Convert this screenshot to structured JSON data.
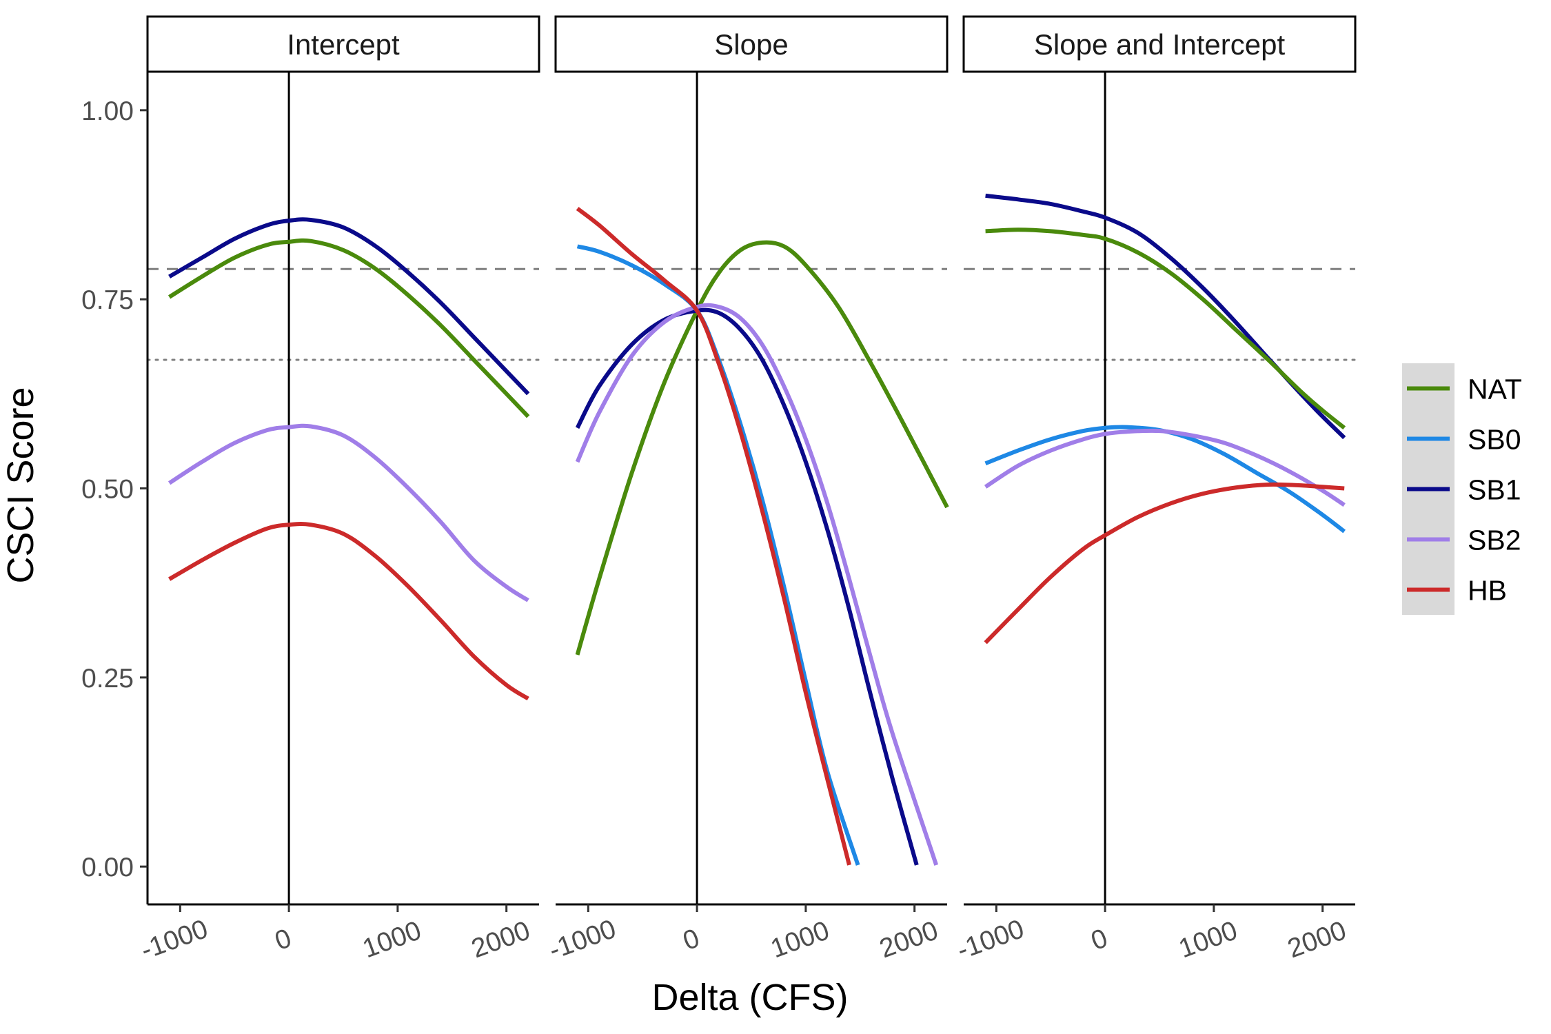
{
  "chart_data": {
    "type": "line",
    "xlabel": "Delta (CFS)",
    "ylabel": "CSCI Score",
    "xlim": [
      -1300,
      2300
    ],
    "ylim": [
      -0.05,
      1.05
    ],
    "x_ticks": [
      -1000,
      0,
      1000,
      2000
    ],
    "x_tick_labels": [
      "-1000",
      "0",
      "1000",
      "2000"
    ],
    "y_ticks": [
      0,
      0.25,
      0.5,
      0.75,
      1.0
    ],
    "y_tick_labels": [
      "0.00",
      "0.25",
      "0.50",
      "0.75",
      "1.00"
    ],
    "reference_lines": {
      "vertical_x": 0,
      "dashed_y": 0.79,
      "dotted_y": 0.67
    },
    "grid": false,
    "legend": {
      "placement": "right",
      "entries": [
        {
          "name": "NAT",
          "color": "#4a8a0c"
        },
        {
          "name": "SB0",
          "color": "#1e88e5"
        },
        {
          "name": "SB1",
          "color": "#0a0a8a"
        },
        {
          "name": "SB2",
          "color": "#a07ee8"
        },
        {
          "name": "HB",
          "color": "#cc2a2a"
        }
      ]
    },
    "panels": [
      {
        "title": "Intercept",
        "series": [
          {
            "name": "SB1",
            "color": "#0a0a8a",
            "x": [
              -1100,
              -800,
              -500,
              -200,
              0,
              200,
              500,
              800,
              1100,
              1400,
              1700,
              2000,
              2200
            ],
            "y": [
              0.78,
              0.805,
              0.83,
              0.848,
              0.854,
              0.855,
              0.845,
              0.82,
              0.785,
              0.745,
              0.7,
              0.655,
              0.625
            ]
          },
          {
            "name": "NAT",
            "color": "#4a8a0c",
            "x": [
              -1100,
              -800,
              -500,
              -200,
              0,
              200,
              500,
              800,
              1100,
              1400,
              1700,
              2000,
              2200
            ],
            "y": [
              0.753,
              0.78,
              0.805,
              0.822,
              0.826,
              0.827,
              0.815,
              0.79,
              0.755,
              0.715,
              0.67,
              0.625,
              0.595
            ]
          },
          {
            "name": "SB2",
            "color": "#a07ee8",
            "x": [
              -1100,
              -800,
              -500,
              -200,
              0,
              200,
              500,
              800,
              1100,
              1400,
              1700,
              2000,
              2200
            ],
            "y": [
              0.507,
              0.535,
              0.56,
              0.577,
              0.581,
              0.582,
              0.57,
              0.54,
              0.5,
              0.455,
              0.405,
              0.37,
              0.352
            ]
          },
          {
            "name": "HB",
            "color": "#cc2a2a",
            "x": [
              -1100,
              -800,
              -500,
              -200,
              0,
              200,
              500,
              800,
              1100,
              1400,
              1700,
              2000,
              2200
            ],
            "y": [
              0.38,
              0.405,
              0.428,
              0.447,
              0.452,
              0.452,
              0.44,
              0.41,
              0.37,
              0.325,
              0.278,
              0.24,
              0.222
            ]
          }
        ]
      },
      {
        "title": "Slope",
        "series": [
          {
            "name": "NAT",
            "color": "#4a8a0c",
            "x": [
              -1100,
              -900,
              -600,
              -300,
              0,
              200,
              400,
              600,
              800,
              1000,
              1300,
              1600,
              1900,
              2300
            ],
            "y": [
              0.28,
              0.38,
              0.52,
              0.64,
              0.735,
              0.785,
              0.815,
              0.825,
              0.82,
              0.795,
              0.74,
              0.665,
              0.585,
              0.475
            ]
          },
          {
            "name": "SB1",
            "color": "#0a0a8a",
            "x": [
              -1100,
              -900,
              -600,
              -300,
              0,
              200,
              400,
              600,
              800,
              1000,
              1200,
              1400,
              1600,
              1800,
              2020
            ],
            "y": [
              0.58,
              0.635,
              0.69,
              0.723,
              0.735,
              0.732,
              0.71,
              0.67,
              0.61,
              0.535,
              0.445,
              0.34,
              0.225,
              0.115,
              0.002
            ]
          },
          {
            "name": "SB2",
            "color": "#a07ee8",
            "x": [
              -1100,
              -900,
              -600,
              -300,
              0,
              200,
              400,
              600,
              800,
              1000,
              1200,
              1400,
              1600,
              1800,
              2200
            ],
            "y": [
              0.535,
              0.6,
              0.675,
              0.72,
              0.74,
              0.74,
              0.725,
              0.69,
              0.635,
              0.565,
              0.48,
              0.38,
              0.275,
              0.175,
              0.002
            ]
          },
          {
            "name": "SB0",
            "color": "#1e88e5",
            "x": [
              -1100,
              -900,
              -600,
              -300,
              0,
              200,
              400,
              600,
              800,
              1000,
              1200,
              1480
            ],
            "y": [
              0.82,
              0.813,
              0.795,
              0.77,
              0.735,
              0.67,
              0.585,
              0.485,
              0.37,
              0.245,
              0.125,
              0.002
            ]
          },
          {
            "name": "HB",
            "color": "#cc2a2a",
            "x": [
              -1100,
              -900,
              -600,
              -300,
              0,
              200,
              400,
              600,
              800,
              1000,
              1200,
              1400
            ],
            "y": [
              0.87,
              0.848,
              0.81,
              0.775,
              0.735,
              0.665,
              0.575,
              0.47,
              0.355,
              0.23,
              0.115,
              0.002
            ]
          }
        ]
      },
      {
        "title": "Slope and Intercept",
        "series": [
          {
            "name": "SB1",
            "color": "#0a0a8a",
            "x": [
              -1100,
              -800,
              -500,
              -200,
              0,
              300,
              600,
              900,
              1200,
              1500,
              1800,
              2000,
              2200
            ],
            "y": [
              0.887,
              0.882,
              0.876,
              0.866,
              0.858,
              0.838,
              0.805,
              0.765,
              0.72,
              0.672,
              0.625,
              0.595,
              0.567
            ]
          },
          {
            "name": "NAT",
            "color": "#4a8a0c",
            "x": [
              -1100,
              -800,
              -500,
              -200,
              0,
              300,
              600,
              900,
              1200,
              1500,
              1800,
              2000,
              2200
            ],
            "y": [
              0.84,
              0.842,
              0.84,
              0.835,
              0.83,
              0.812,
              0.785,
              0.75,
              0.71,
              0.67,
              0.628,
              0.603,
              0.58
            ]
          },
          {
            "name": "SB0",
            "color": "#1e88e5",
            "x": [
              -1100,
              -800,
              -500,
              -200,
              0,
              200,
              500,
              800,
              1100,
              1400,
              1700,
              2000,
              2200
            ],
            "y": [
              0.533,
              0.55,
              0.565,
              0.576,
              0.58,
              0.581,
              0.577,
              0.565,
              0.545,
              0.52,
              0.495,
              0.465,
              0.443
            ]
          },
          {
            "name": "SB2",
            "color": "#a07ee8",
            "x": [
              -1100,
              -800,
              -500,
              -200,
              0,
              200,
              500,
              800,
              1100,
              1400,
              1700,
              2000,
              2200
            ],
            "y": [
              0.502,
              0.53,
              0.55,
              0.565,
              0.572,
              0.575,
              0.576,
              0.57,
              0.56,
              0.543,
              0.522,
              0.497,
              0.478
            ]
          },
          {
            "name": "HB",
            "color": "#cc2a2a",
            "x": [
              -1100,
              -800,
              -500,
              -200,
              0,
              300,
              600,
              900,
              1200,
              1500,
              1800,
              2000,
              2200
            ],
            "y": [
              0.296,
              0.34,
              0.383,
              0.42,
              0.438,
              0.462,
              0.48,
              0.493,
              0.501,
              0.505,
              0.504,
              0.502,
              0.5
            ]
          }
        ]
      }
    ]
  }
}
